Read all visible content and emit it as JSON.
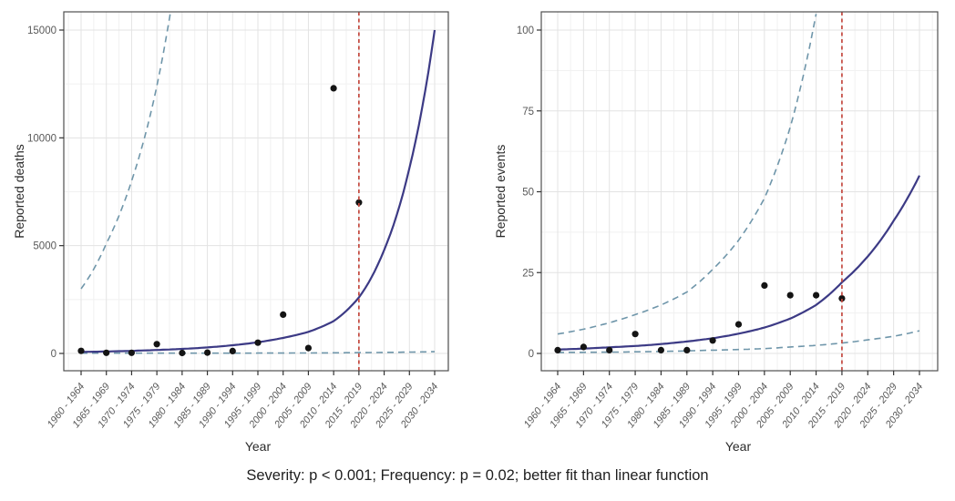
{
  "caption": "Severity: p < 0.001; Frequency: p = 0.02; better fit than linear function",
  "colors": {
    "fit_line": "#3c3a85",
    "confidence_band": "#6f96aa",
    "cutoff_line": "#c4493f",
    "point": "#141414",
    "grid_major": "#e3e3e3",
    "grid_minor": "#f1f1f1",
    "panel_border": "#4f4f4f",
    "tick_mark": "#333333",
    "tick_text": "#595959"
  },
  "chart_data": [
    {
      "type": "scatter",
      "panel": "severity",
      "ylabel": "Reported deaths",
      "xlabel": "Year",
      "ylim": [
        0,
        15800
      ],
      "yticks": [
        0,
        5000,
        10000,
        15000
      ],
      "grid": true,
      "legend": "none",
      "categories": [
        "1960 - 1964",
        "1965 - 1969",
        "1970 - 1974",
        "1975 - 1979",
        "1980 - 1984",
        "1985 - 1989",
        "1990 - 1994",
        "1995 - 1999",
        "2000 - 2004",
        "2005 - 2009",
        "2010 - 2014",
        "2015 - 2019",
        "2020 - 2024",
        "2025 - 2029",
        "2030 - 2034"
      ],
      "vline_category": "2015 - 2019",
      "series": [
        {
          "name": "observed",
          "style": "points",
          "values": [
            120,
            30,
            30,
            430,
            20,
            40,
            110,
            500,
            1800,
            250,
            12300,
            7000,
            null,
            null,
            null
          ]
        },
        {
          "name": "fitted",
          "style": "line",
          "values": [
            70,
            90,
            120,
            160,
            210,
            280,
            380,
            520,
            720,
            1000,
            1500,
            2600,
            4800,
            8600,
            15000
          ]
        },
        {
          "name": "upper_ci",
          "style": "dashed",
          "values": [
            3000,
            5100,
            8000,
            12400,
            19500,
            null,
            null,
            null,
            null,
            null,
            null,
            null,
            null,
            null,
            null
          ]
        },
        {
          "name": "lower_ci",
          "style": "dashed",
          "values": [
            15,
            13,
            12,
            11,
            11,
            12,
            13,
            15,
            18,
            22,
            28,
            36,
            47,
            62,
            82
          ]
        }
      ]
    },
    {
      "type": "scatter",
      "panel": "frequency",
      "ylabel": "Reported events",
      "xlabel": "Year",
      "ylim": [
        0,
        105
      ],
      "yticks": [
        0,
        25,
        50,
        75,
        100
      ],
      "grid": true,
      "legend": "none",
      "categories": [
        "1960 - 1964",
        "1965 - 1969",
        "1970 - 1974",
        "1975 - 1979",
        "1980 - 1984",
        "1985 - 1989",
        "1990 - 1994",
        "1995 - 1999",
        "2000 - 2004",
        "2005 - 2009",
        "2010 - 2014",
        "2015 - 2019",
        "2020 - 2024",
        "2025 - 2029",
        "2030 - 2034"
      ],
      "vline_category": "2015 - 2019",
      "series": [
        {
          "name": "observed",
          "style": "points",
          "values": [
            1,
            2,
            1,
            6,
            1,
            1,
            4,
            9,
            21,
            18,
            18,
            17,
            null,
            null,
            null
          ]
        },
        {
          "name": "fitted",
          "style": "line",
          "values": [
            1.2,
            1.5,
            1.9,
            2.3,
            2.9,
            3.7,
            4.7,
            6.1,
            8.0,
            10.8,
            15,
            22,
            30,
            41,
            55
          ]
        },
        {
          "name": "upper_ci",
          "style": "dashed",
          "values": [
            6,
            7.5,
            9.5,
            12,
            15,
            19,
            26,
            35,
            48,
            70,
            105,
            null,
            null,
            null,
            null
          ]
        },
        {
          "name": "lower_ci",
          "style": "dashed",
          "values": [
            0.3,
            0.35,
            0.4,
            0.5,
            0.6,
            0.8,
            1.0,
            1.2,
            1.5,
            2.0,
            2.5,
            3.2,
            4.2,
            5.3,
            7.0
          ]
        }
      ]
    }
  ]
}
